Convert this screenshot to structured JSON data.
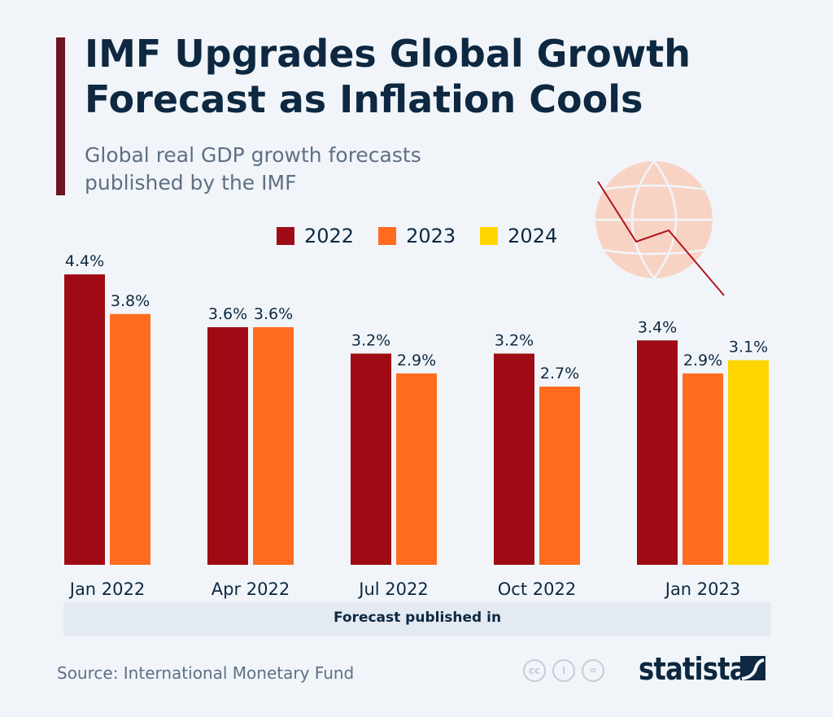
{
  "header": {
    "title": "IMF Upgrades Global Growth Forecast as Inflation Cools",
    "subtitle_line1": "Global real GDP growth forecasts",
    "subtitle_line2": "published by the IMF"
  },
  "footer": {
    "source": "Source: International Monetary Fund",
    "brand": "statista",
    "cc_icons": [
      "cc-icon",
      "by-icon",
      "nd-icon"
    ],
    "cc_label": "cc"
  },
  "colors": {
    "2022": "#9e0b14",
    "2023": "#ff6b1f",
    "2024": "#ffd500"
  },
  "chart_data": {
    "type": "bar",
    "title": "IMF Upgrades Global Growth Forecast as Inflation Cools",
    "xlabel": "Forecast published in",
    "ylabel": "",
    "categories": [
      "Jan 2022",
      "Apr 2022",
      "Jul 2022",
      "Oct 2022",
      "Jan 2023"
    ],
    "series": [
      {
        "name": "2022",
        "values": [
          4.4,
          3.6,
          3.2,
          3.2,
          3.4
        ],
        "labels": [
          "4.4%",
          "3.6%",
          "3.2%",
          "3.2%",
          "3.4%"
        ]
      },
      {
        "name": "2023",
        "values": [
          3.8,
          3.6,
          2.9,
          2.7,
          2.9
        ],
        "labels": [
          "3.8%",
          "3.6%",
          "2.9%",
          "2.7%",
          "2.9%"
        ]
      },
      {
        "name": "2024",
        "values": [
          null,
          null,
          null,
          null,
          3.1
        ],
        "labels": [
          null,
          null,
          null,
          null,
          "3.1%"
        ]
      }
    ],
    "ylim": [
      0,
      4.4
    ],
    "grid": false,
    "legend": "top"
  }
}
